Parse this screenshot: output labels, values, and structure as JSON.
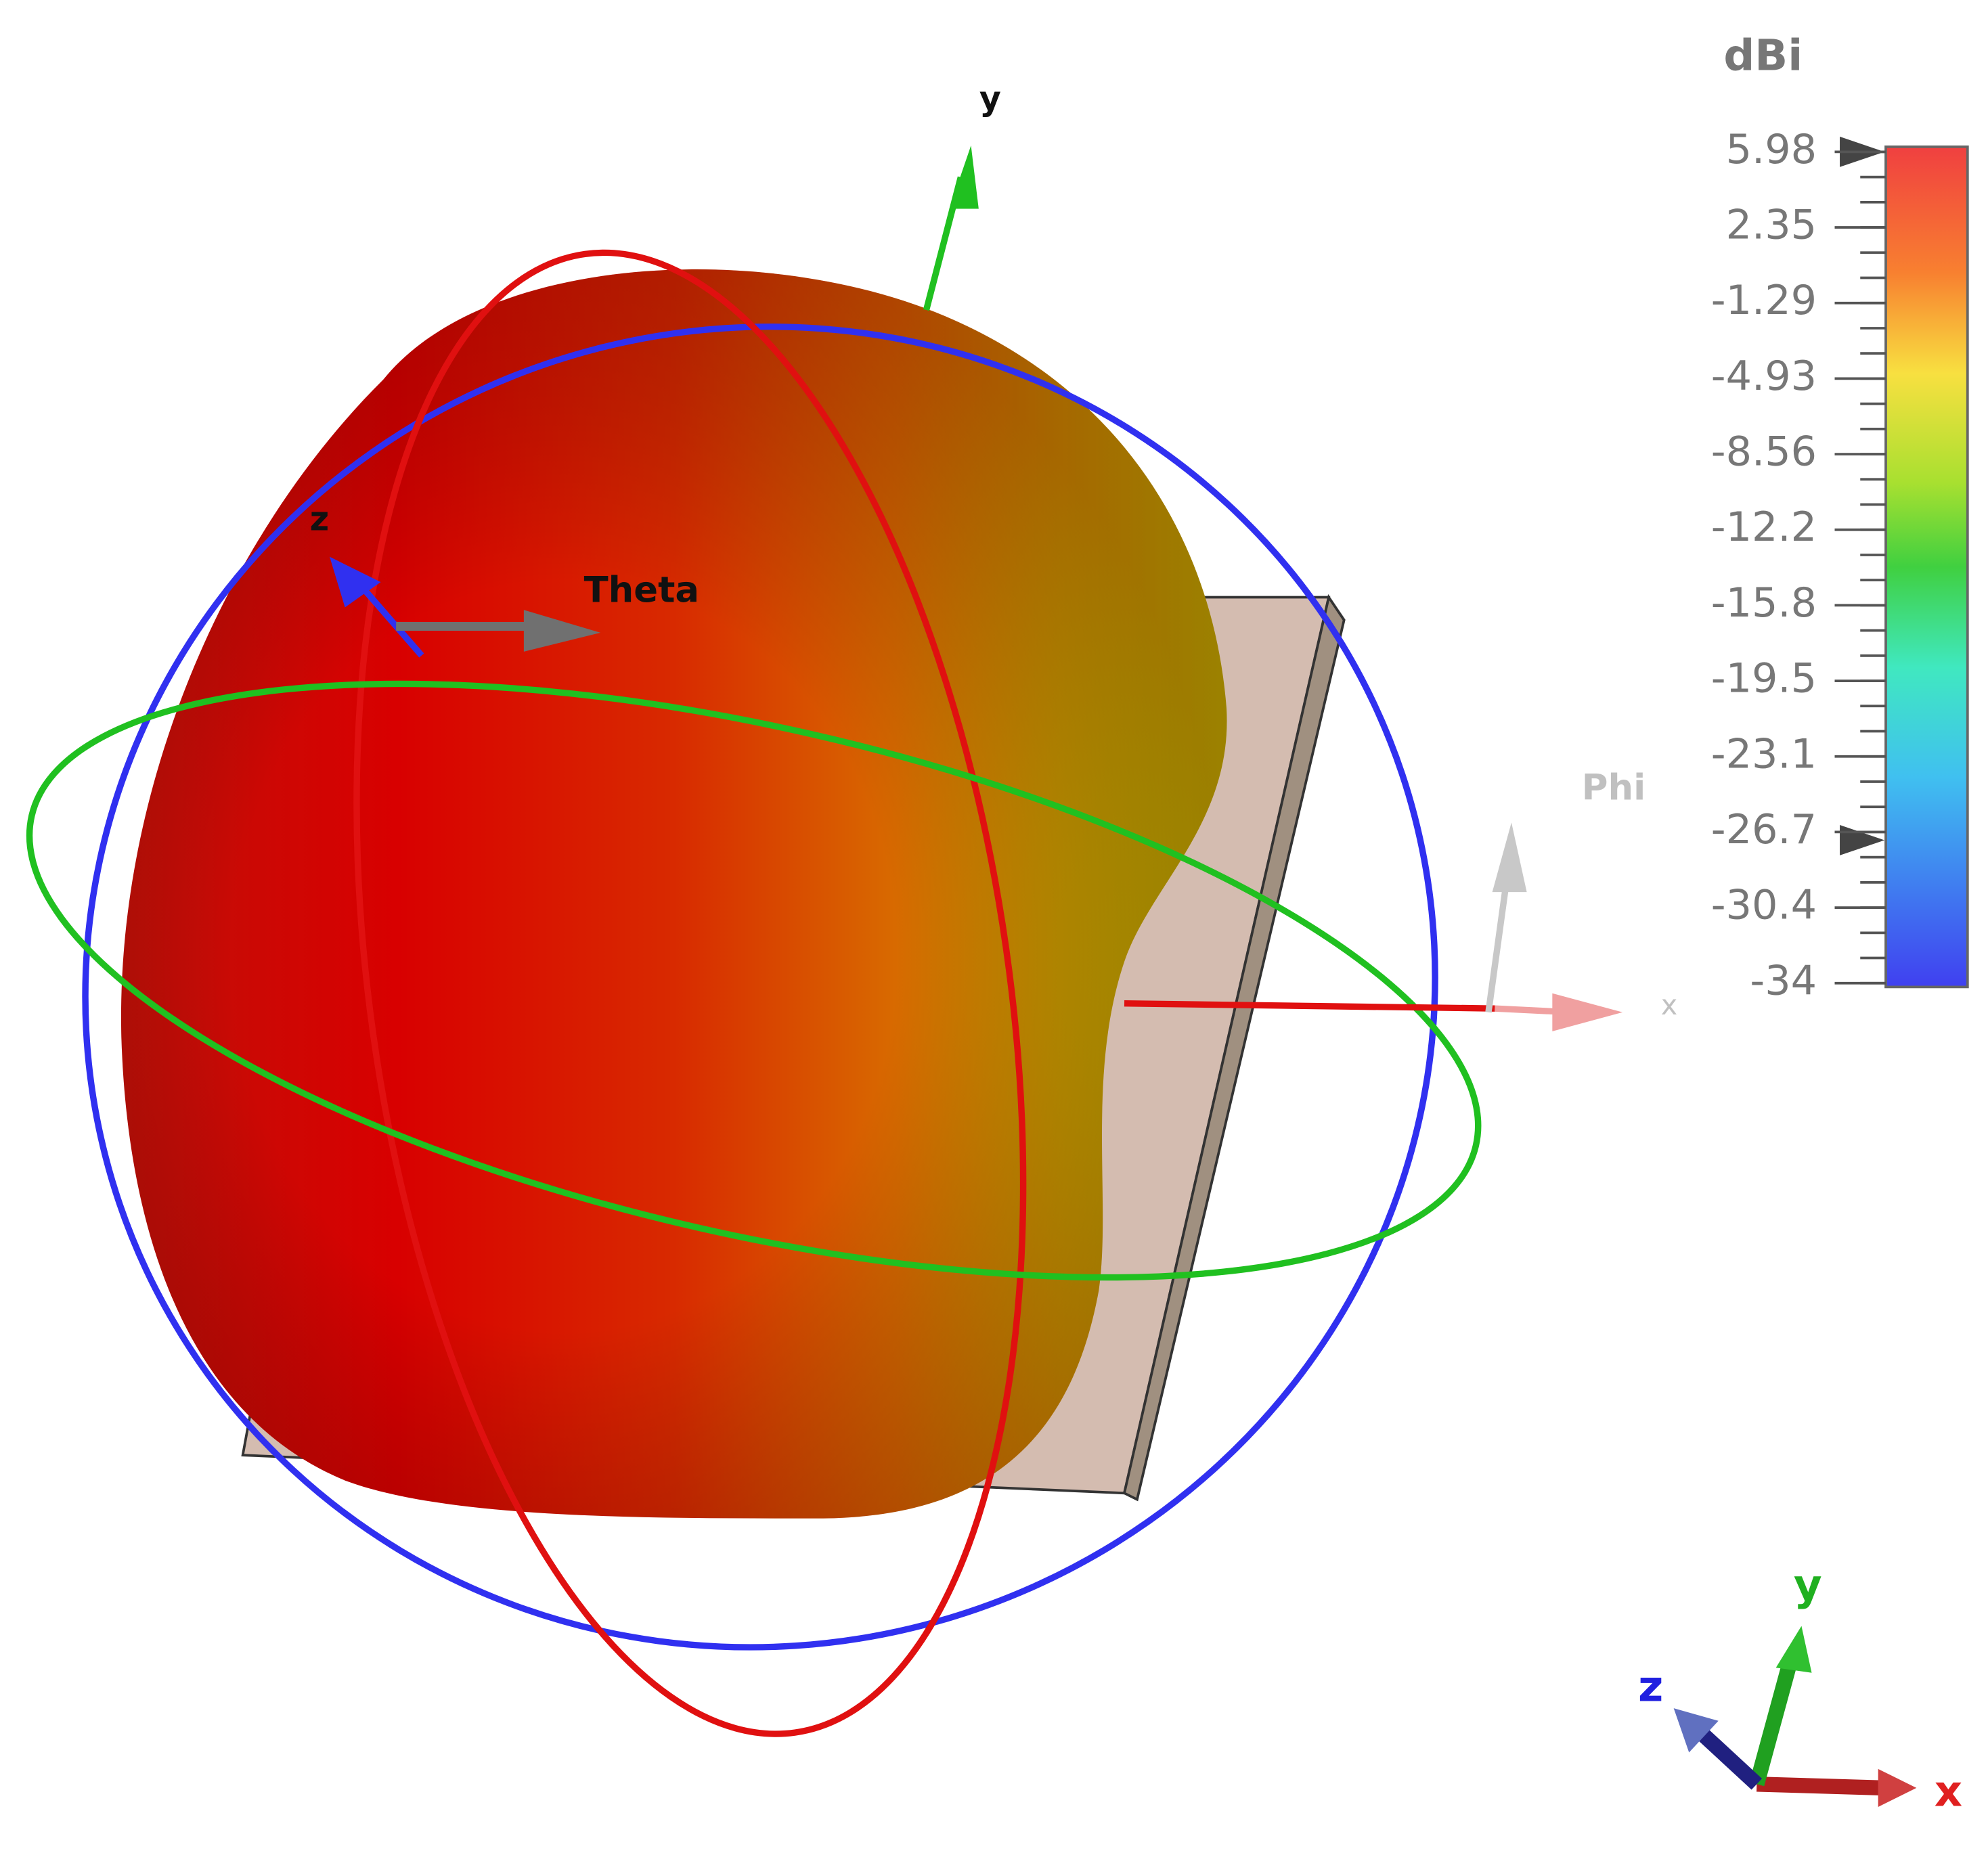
{
  "colorbar": {
    "unit": "dBi",
    "ticks": [
      "5.98",
      "2.35",
      "-1.29",
      "-4.93",
      "-8.56",
      "-12.2",
      "-15.8",
      "-19.5",
      "-23.1",
      "-26.7",
      "-30.4",
      "-34"
    ]
  },
  "scene_labels": {
    "y_axis": "y",
    "z_axis": "z",
    "theta": "Theta",
    "phi": "Phi",
    "x_axis": "x"
  },
  "triad": {
    "x": "x",
    "y": "y",
    "z": "z"
  }
}
